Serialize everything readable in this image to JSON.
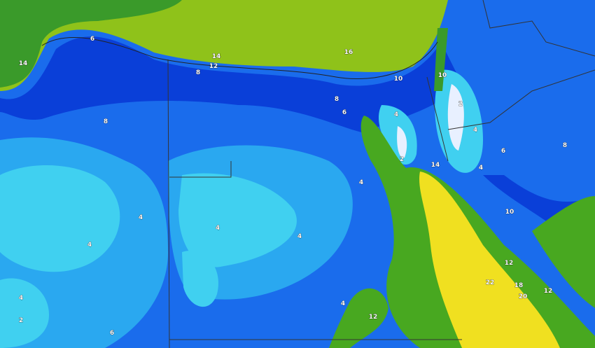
{
  "map": {
    "colors": {
      "mediterranean": "#8fc21a",
      "coastal_green": "#3a9a2a",
      "dark_blue": "#0a3fd8",
      "mid_blue": "#1e78f0",
      "light_blue": "#2aa8f0",
      "cyan": "#40d0f0",
      "pale": "#c8f0f8",
      "red_sea_yellow": "#f0e020",
      "red_sea_green": "#48a820",
      "border": "#333333"
    },
    "contour_labels": [
      "6",
      "14",
      "14",
      "12",
      "8",
      "16",
      "10",
      "10",
      "8",
      "6",
      "4",
      "2",
      "2",
      "4",
      "6",
      "8",
      "4",
      "14",
      "4",
      "8",
      "4",
      "4",
      "4",
      "4",
      "4",
      "12",
      "22",
      "18",
      "20",
      "12",
      "10",
      "12",
      "6",
      "2",
      "4"
    ]
  }
}
